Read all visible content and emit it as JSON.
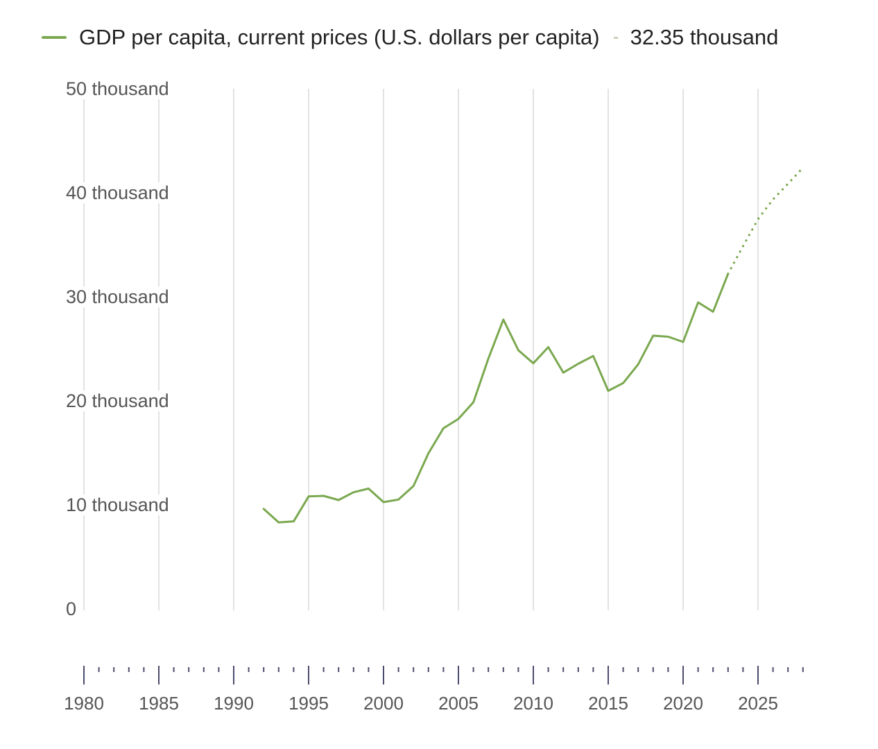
{
  "legend": {
    "series_label": "GDP per capita, current prices (U.S. dollars per capita)",
    "latest_value": "32.35 thousand"
  },
  "colors": {
    "series": "#7aa84f",
    "gridline": "#d9d9d9",
    "axis_tick": "#4b4b6e"
  },
  "chart_data": {
    "type": "line",
    "title": "",
    "xlabel": "",
    "ylabel": "",
    "xlim": [
      1980,
      2028
    ],
    "ylim": [
      0,
      50000
    ],
    "y_ticks": [
      {
        "value": 0,
        "label": "0"
      },
      {
        "value": 10000,
        "label": "10 thousand"
      },
      {
        "value": 20000,
        "label": "20 thousand"
      },
      {
        "value": 30000,
        "label": "30 thousand"
      },
      {
        "value": 40000,
        "label": "40 thousand"
      },
      {
        "value": 50000,
        "label": "50 thousand"
      }
    ],
    "x_ticks": [
      1980,
      1985,
      1990,
      1995,
      2000,
      2005,
      2010,
      2015,
      2020,
      2025
    ],
    "grid": "vertical",
    "legend_position": "top",
    "series": [
      {
        "name": "GDP per capita, current prices (U.S. dollars per capita)",
        "style": "solid",
        "x": [
          1992,
          1993,
          1994,
          1995,
          1996,
          1997,
          1998,
          1999,
          2000,
          2001,
          2002,
          2003,
          2004,
          2005,
          2006,
          2007,
          2008,
          2009,
          2010,
          2011,
          2012,
          2013,
          2014,
          2015,
          2016,
          2017,
          2018,
          2019,
          2020,
          2021,
          2022,
          2023
        ],
        "values": [
          9750,
          8450,
          8550,
          10950,
          11000,
          10600,
          11350,
          11700,
          10400,
          10650,
          11950,
          15100,
          17500,
          18400,
          20000,
          24200,
          27950,
          25000,
          23750,
          25300,
          22850,
          23700,
          24450,
          21100,
          21850,
          23650,
          26400,
          26300,
          25800,
          29600,
          28700,
          32350
        ]
      },
      {
        "name": "",
        "style": "dotted",
        "x": [
          2023,
          2024,
          2025,
          2026,
          2027,
          2028
        ],
        "values": [
          32350,
          35000,
          37600,
          39500,
          41000,
          42550
        ]
      }
    ]
  }
}
